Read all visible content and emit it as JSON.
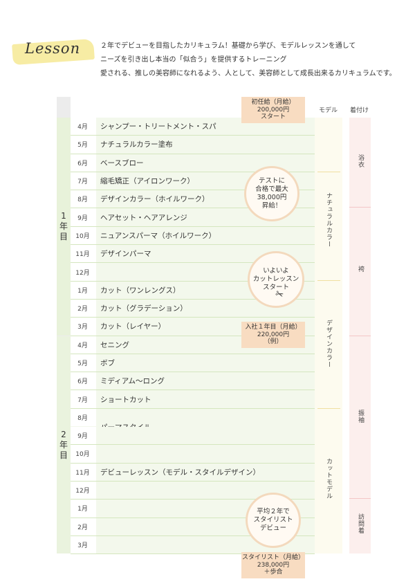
{
  "header": {
    "title": "Lesson",
    "lines": [
      "２年でデビューを目指したカリキュラム！基礎から学び、モデルレッスンを通して",
      "ニーズを引き出し本当の「似合う」を提供するトレーニング",
      "愛される、推しの美容師になれるよう、人として、美容師として成長出来るカリキュラムです。"
    ]
  },
  "columns": {
    "model": "モデル",
    "kimono": "着付け"
  },
  "years": {
    "first": [
      "1",
      "年",
      "目"
    ],
    "second": [
      "2",
      "年",
      "目"
    ]
  },
  "rows": [
    {
      "month": "4月",
      "lesson": "シャンプー・トリートメント・スパ"
    },
    {
      "month": "5月",
      "lesson": "ナチュラルカラー塗布"
    },
    {
      "month": "6月",
      "lesson": "ベースブロー"
    },
    {
      "month": "7月",
      "lesson": "縮毛矯正（アイロンワーク）"
    },
    {
      "month": "8月",
      "lesson": "デザインカラー（ホイルワーク）"
    },
    {
      "month": "9月",
      "lesson": "ヘアセット・ヘアアレンジ"
    },
    {
      "month": "10月",
      "lesson": "ニュアンスパーマ（ホイルワーク）"
    },
    {
      "month": "11月",
      "lesson": "デザインパーマ"
    },
    {
      "month": "12月",
      "lesson": ""
    },
    {
      "month": "1月",
      "lesson": "カット（ワンレングス）"
    },
    {
      "month": "2月",
      "lesson": "カット（グラデーション）"
    },
    {
      "month": "3月",
      "lesson": "カット（レイヤー）"
    },
    {
      "month": "4月",
      "lesson": "セニング"
    },
    {
      "month": "5月",
      "lesson": "ボブ"
    },
    {
      "month": "6月",
      "lesson": "ミディアム〜ロング"
    },
    {
      "month": "7月",
      "lesson": "ショートカット"
    },
    {
      "month": "8月",
      "lesson": ""
    },
    {
      "month": "9月",
      "lesson": ""
    },
    {
      "month": "10月",
      "lesson": ""
    },
    {
      "month": "11月",
      "lesson": "デビューレッスン（モデル・スタイルデザイン）"
    },
    {
      "month": "12月",
      "lesson": ""
    },
    {
      "month": "1月",
      "lesson": ""
    },
    {
      "month": "2月",
      "lesson": ""
    },
    {
      "month": "3月",
      "lesson": ""
    }
  ],
  "perm_style": "パーマスタイル",
  "salary_start": [
    "初任給（月給）",
    "200,000円",
    "スタート"
  ],
  "salary_year1": [
    "入社１年目（月給）",
    "220,000円",
    "（例）"
  ],
  "salary_stylist": [
    "スタイリスト（月給）",
    "238,000円",
    "＋歩合"
  ],
  "bubble_test": [
    "テストに",
    "合格で最大",
    "38,000円",
    "昇給！"
  ],
  "bubble_cut": [
    "いよいよ",
    "カットレッスン",
    "スタート"
  ],
  "bubble_debut": [
    "平均２年で",
    "スタイリスト",
    "デビュー"
  ],
  "model_labels": [
    "ナチュラルカラー",
    "デザインカラー",
    "カットモデル"
  ],
  "kimono_labels": [
    "浴衣",
    "袴",
    "振袖",
    "訪問着"
  ],
  "accent": {
    "green_row": "#f3f8ec",
    "green_line": "#d4e6be",
    "salary": "#f8dcc1",
    "highlight": "#f6ea9a",
    "kimono": "#fcefed"
  }
}
